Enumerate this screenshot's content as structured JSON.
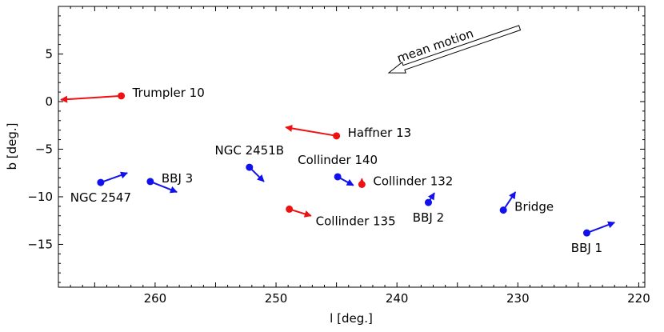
{
  "chart_data": {
    "type": "scatter",
    "title": "",
    "xlabel": "l [deg.]",
    "ylabel": "b [deg.]",
    "xlim": [
      268,
      219.5
    ],
    "ylim": [
      -19.5,
      10
    ],
    "x_reversed": true,
    "xticks": [
      260,
      250,
      240,
      230,
      220
    ],
    "xtick_labels": [
      "260",
      "250",
      "240",
      "230",
      "220"
    ],
    "yticks": [
      5,
      0,
      -5,
      -10,
      -15
    ],
    "ytick_labels": [
      "5",
      "0",
      "−5",
      "−10",
      "−15"
    ],
    "grid": false,
    "colors": {
      "red": "#ee1111",
      "blue": "#1111ee"
    },
    "points": [
      {
        "name": "Trumpler 10",
        "l": 262.8,
        "b": 0.6,
        "dl": 5.0,
        "db": -0.4,
        "color": "red",
        "label_pos": "right"
      },
      {
        "name": "Haffner 13",
        "l": 245.0,
        "b": -3.6,
        "dl": 4.2,
        "db": 0.9,
        "color": "red",
        "label_pos": "right"
      },
      {
        "name": "Collinder 132",
        "l": 242.9,
        "b": -8.7,
        "dl": 0.0,
        "db": 0.6,
        "color": "red",
        "label_pos": "right"
      },
      {
        "name": "Collinder 135",
        "l": 248.9,
        "b": -11.3,
        "dl": -1.8,
        "db": -0.7,
        "color": "red",
        "label_pos": "below-right"
      },
      {
        "name": "NGC 2547",
        "l": 264.5,
        "b": -8.5,
        "dl": -2.2,
        "db": 1.0,
        "color": "blue",
        "label_pos": "below"
      },
      {
        "name": "BBJ 3",
        "l": 260.4,
        "b": -8.4,
        "dl": -2.2,
        "db": -1.1,
        "color": "blue",
        "label_pos": "right"
      },
      {
        "name": "NGC 2451B",
        "l": 252.2,
        "b": -6.9,
        "dl": -1.2,
        "db": -1.5,
        "color": "blue",
        "label_pos": "above"
      },
      {
        "name": "Collinder 140",
        "l": 244.9,
        "b": -7.9,
        "dl": -1.3,
        "db": -0.9,
        "color": "blue",
        "label_pos": "above"
      },
      {
        "name": "BBJ 2",
        "l": 237.4,
        "b": -10.6,
        "dl": -0.5,
        "db": 1.0,
        "color": "blue",
        "label_pos": "below"
      },
      {
        "name": "Bridge",
        "l": 231.2,
        "b": -11.4,
        "dl": -1.0,
        "db": 1.9,
        "color": "blue",
        "label_pos": "right"
      },
      {
        "name": "BBJ 1",
        "l": 224.3,
        "b": -13.8,
        "dl": -2.3,
        "db": 1.1,
        "color": "blue",
        "label_pos": "below"
      }
    ],
    "annotation": {
      "text": "mean motion",
      "angle": -19
    }
  }
}
